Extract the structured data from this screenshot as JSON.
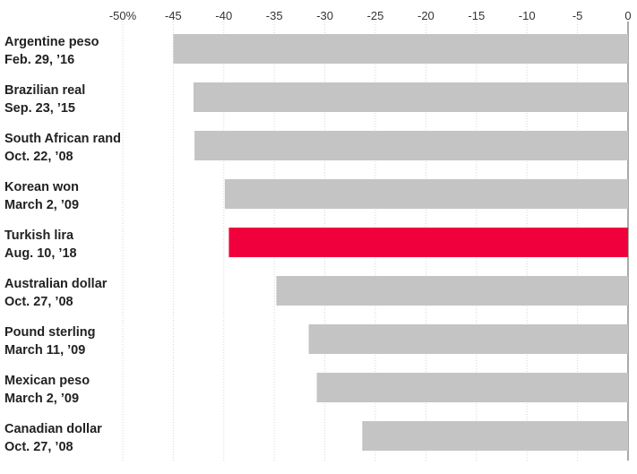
{
  "chart_data": {
    "type": "bar",
    "orientation": "horizontal",
    "categories": [
      [
        "Argentine peso",
        "Feb. 29, ’16"
      ],
      [
        "Brazilian real",
        "Sep. 23, ’15"
      ],
      [
        "South African rand",
        "Oct. 22, ’08"
      ],
      [
        "Korean won",
        "March 2, ’09"
      ],
      [
        "Turkish lira",
        "Aug. 10, ’18"
      ],
      [
        "Australian dollar",
        "Oct. 27, ’08"
      ],
      [
        "Pound sterling",
        "March 11, ’09"
      ],
      [
        "Mexican peso",
        "March 2, ’09"
      ],
      [
        "Canadian dollar",
        "Oct. 27, ’08"
      ]
    ],
    "values": [
      -45.0,
      -43.0,
      -42.9,
      -39.9,
      -39.5,
      -34.8,
      -31.6,
      -30.8,
      -26.3
    ],
    "highlight_index": 4,
    "colors": {
      "default_bar": "#c4c4c4",
      "highlight_bar": "#f0003c",
      "grid": "#d6d6d6",
      "axis_text": "#333333",
      "label_text": "#222222"
    },
    "xlim": [
      -50,
      0
    ],
    "ticks": [
      -50,
      -45,
      -40,
      -35,
      -30,
      -25,
      -20,
      -15,
      -10,
      -5,
      0
    ],
    "tick_labels": [
      "-50%",
      "-45",
      "-40",
      "-35",
      "-30",
      "-25",
      "-20",
      "-15",
      "-10",
      "-5",
      "0"
    ],
    "title": "",
    "xlabel": "",
    "ylabel": "",
    "grid": true
  }
}
